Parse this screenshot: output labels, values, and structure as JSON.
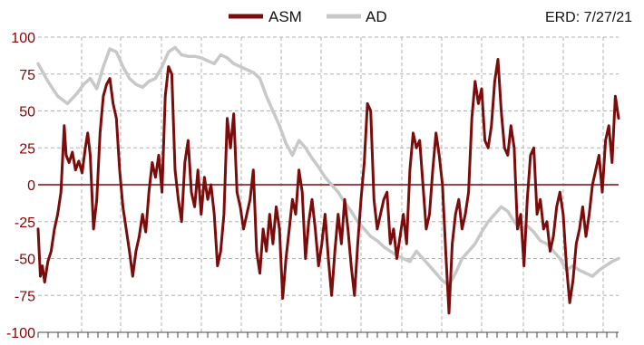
{
  "chart_data": {
    "type": "line",
    "title": "",
    "xlabel": "",
    "ylabel": "",
    "ylim": [
      -100,
      100
    ],
    "yticks": [
      100,
      75,
      50,
      25,
      0,
      -25,
      -50,
      -75,
      -100
    ],
    "grid": true,
    "legend_position": "top",
    "annotation": "ERD: 7/27/21",
    "colors": {
      "ASM": "#7b0c0c",
      "AD": "#c8c8c8",
      "zero_line": "#7b0c0c",
      "grid": "#b0b0b0",
      "tick_labels": "#8b0000"
    },
    "series": [
      {
        "name": "ASM",
        "points": [
          [
            0,
            -30
          ],
          [
            0.7,
            -62
          ],
          [
            1.3,
            -55
          ],
          [
            2,
            -66
          ],
          [
            3,
            -52
          ],
          [
            4,
            -45
          ],
          [
            5,
            -30
          ],
          [
            6,
            -20
          ],
          [
            7,
            -5
          ],
          [
            8,
            40
          ],
          [
            8.6,
            20
          ],
          [
            9.5,
            15
          ],
          [
            10.5,
            22
          ],
          [
            11.5,
            10
          ],
          [
            12.5,
            16
          ],
          [
            13.5,
            8
          ],
          [
            14.5,
            25
          ],
          [
            15.2,
            35
          ],
          [
            16,
            20
          ],
          [
            17,
            -30
          ],
          [
            18,
            -10
          ],
          [
            19,
            35
          ],
          [
            20,
            60
          ],
          [
            21,
            68
          ],
          [
            22,
            72
          ],
          [
            23,
            55
          ],
          [
            24,
            45
          ],
          [
            25,
            10
          ],
          [
            26,
            -15
          ],
          [
            27,
            -30
          ],
          [
            28,
            -45
          ],
          [
            29,
            -62
          ],
          [
            30,
            -45
          ],
          [
            31,
            -35
          ],
          [
            32,
            -20
          ],
          [
            33,
            -32
          ],
          [
            34,
            -5
          ],
          [
            35,
            15
          ],
          [
            36,
            5
          ],
          [
            37,
            20
          ],
          [
            38,
            -5
          ],
          [
            39,
            60
          ],
          [
            40,
            80
          ],
          [
            41,
            75
          ],
          [
            42,
            10
          ],
          [
            43,
            -10
          ],
          [
            44,
            -25
          ],
          [
            45,
            15
          ],
          [
            46,
            30
          ],
          [
            47,
            -5
          ],
          [
            48,
            -15
          ],
          [
            49,
            10
          ],
          [
            50,
            -20
          ],
          [
            51,
            5
          ],
          [
            52,
            -10
          ],
          [
            53,
            0
          ],
          [
            54,
            -20
          ],
          [
            55,
            -55
          ],
          [
            56,
            -45
          ],
          [
            57,
            -20
          ],
          [
            58,
            45
          ],
          [
            59,
            25
          ],
          [
            60,
            48
          ],
          [
            61,
            -5
          ],
          [
            62,
            -15
          ],
          [
            63,
            -30
          ],
          [
            64,
            -20
          ],
          [
            65,
            -10
          ],
          [
            66,
            10
          ],
          [
            67,
            -45
          ],
          [
            68,
            -60
          ],
          [
            69,
            -30
          ],
          [
            70,
            -45
          ],
          [
            71,
            -20
          ],
          [
            72,
            -40
          ],
          [
            73,
            -15
          ],
          [
            74,
            -30
          ],
          [
            75,
            -77
          ],
          [
            76,
            -50
          ],
          [
            77,
            -30
          ],
          [
            78,
            -10
          ],
          [
            79,
            -20
          ],
          [
            80,
            10
          ],
          [
            81,
            -5
          ],
          [
            82,
            -50
          ],
          [
            83,
            -25
          ],
          [
            84,
            -10
          ],
          [
            85,
            -30
          ],
          [
            86,
            -55
          ],
          [
            87,
            -40
          ],
          [
            88,
            -20
          ],
          [
            89,
            -50
          ],
          [
            90,
            -75
          ],
          [
            91,
            -45
          ],
          [
            92,
            -20
          ],
          [
            93,
            -40
          ],
          [
            94,
            -10
          ],
          [
            95,
            -30
          ],
          [
            96,
            -55
          ],
          [
            97,
            -75
          ],
          [
            98,
            -40
          ],
          [
            99,
            -10
          ],
          [
            100,
            15
          ],
          [
            101,
            55
          ],
          [
            102,
            50
          ],
          [
            103,
            -10
          ],
          [
            104,
            -30
          ],
          [
            105,
            -20
          ],
          [
            106,
            -10
          ],
          [
            107,
            -5
          ],
          [
            108,
            -40
          ],
          [
            109,
            -30
          ],
          [
            110,
            -50
          ],
          [
            111,
            -35
          ],
          [
            112,
            -20
          ],
          [
            113,
            -40
          ],
          [
            114,
            10
          ],
          [
            115,
            35
          ],
          [
            116,
            25
          ],
          [
            117,
            30
          ],
          [
            118,
            0
          ],
          [
            119,
            -30
          ],
          [
            120,
            -20
          ],
          [
            121,
            10
          ],
          [
            122,
            35
          ],
          [
            123,
            20
          ],
          [
            124,
            0
          ],
          [
            125,
            -45
          ],
          [
            126,
            -87
          ],
          [
            127,
            -40
          ],
          [
            128,
            -20
          ],
          [
            129,
            -10
          ],
          [
            130,
            -30
          ],
          [
            131,
            -20
          ],
          [
            132,
            -5
          ],
          [
            133,
            45
          ],
          [
            134,
            70
          ],
          [
            135,
            55
          ],
          [
            136,
            65
          ],
          [
            137,
            30
          ],
          [
            138,
            25
          ],
          [
            139,
            40
          ],
          [
            140,
            70
          ],
          [
            141,
            85
          ],
          [
            142,
            50
          ],
          [
            143,
            25
          ],
          [
            144,
            20
          ],
          [
            145,
            40
          ],
          [
            146,
            25
          ],
          [
            147,
            -30
          ],
          [
            148,
            -20
          ],
          [
            149,
            -55
          ],
          [
            150,
            -10
          ],
          [
            151,
            20
          ],
          [
            152,
            25
          ],
          [
            153,
            -20
          ],
          [
            154,
            -10
          ],
          [
            155,
            -30
          ],
          [
            156,
            -25
          ],
          [
            157,
            -45
          ],
          [
            158,
            -35
          ],
          [
            159,
            -15
          ],
          [
            160,
            -5
          ],
          [
            161,
            -20
          ],
          [
            162,
            -55
          ],
          [
            163,
            -80
          ],
          [
            164,
            -65
          ],
          [
            165,
            -40
          ],
          [
            166,
            -30
          ],
          [
            167,
            -15
          ],
          [
            168,
            -35
          ],
          [
            169,
            -20
          ],
          [
            170,
            0
          ],
          [
            171,
            10
          ],
          [
            172,
            20
          ],
          [
            173,
            -5
          ],
          [
            174,
            30
          ],
          [
            175,
            40
          ],
          [
            176,
            15
          ],
          [
            177,
            60
          ],
          [
            178,
            45
          ]
        ]
      },
      {
        "name": "AD",
        "points": [
          [
            0,
            82
          ],
          [
            3,
            70
          ],
          [
            6,
            60
          ],
          [
            9,
            55
          ],
          [
            12,
            62
          ],
          [
            14,
            68
          ],
          [
            16,
            72
          ],
          [
            18,
            65
          ],
          [
            20,
            80
          ],
          [
            22,
            92
          ],
          [
            24,
            90
          ],
          [
            26,
            80
          ],
          [
            28,
            72
          ],
          [
            30,
            68
          ],
          [
            32,
            66
          ],
          [
            34,
            70
          ],
          [
            36,
            72
          ],
          [
            38,
            80
          ],
          [
            40,
            90
          ],
          [
            42,
            93
          ],
          [
            44,
            88
          ],
          [
            46,
            87
          ],
          [
            48,
            87
          ],
          [
            50,
            86
          ],
          [
            52,
            84
          ],
          [
            54,
            82
          ],
          [
            56,
            88
          ],
          [
            58,
            86
          ],
          [
            60,
            82
          ],
          [
            62,
            80
          ],
          [
            64,
            78
          ],
          [
            66,
            76
          ],
          [
            68,
            72
          ],
          [
            70,
            60
          ],
          [
            72,
            50
          ],
          [
            74,
            40
          ],
          [
            76,
            28
          ],
          [
            78,
            20
          ],
          [
            80,
            30
          ],
          [
            82,
            25
          ],
          [
            84,
            18
          ],
          [
            86,
            12
          ],
          [
            88,
            5
          ],
          [
            90,
            0
          ],
          [
            92,
            -5
          ],
          [
            94,
            -12
          ],
          [
            96,
            -18
          ],
          [
            98,
            -25
          ],
          [
            100,
            -30
          ],
          [
            102,
            -35
          ],
          [
            104,
            -38
          ],
          [
            106,
            -42
          ],
          [
            108,
            -45
          ],
          [
            110,
            -48
          ],
          [
            112,
            -50
          ],
          [
            114,
            -52
          ],
          [
            116,
            -45
          ],
          [
            118,
            -50
          ],
          [
            120,
            -55
          ],
          [
            122,
            -60
          ],
          [
            124,
            -65
          ],
          [
            126,
            -68
          ],
          [
            128,
            -60
          ],
          [
            130,
            -50
          ],
          [
            132,
            -45
          ],
          [
            134,
            -40
          ],
          [
            136,
            -32
          ],
          [
            138,
            -25
          ],
          [
            140,
            -20
          ],
          [
            142,
            -15
          ],
          [
            144,
            -18
          ],
          [
            146,
            -25
          ],
          [
            148,
            -30
          ],
          [
            150,
            -28
          ],
          [
            152,
            -32
          ],
          [
            154,
            -38
          ],
          [
            156,
            -40
          ],
          [
            158,
            -45
          ],
          [
            160,
            -50
          ],
          [
            162,
            -58
          ],
          [
            164,
            -55
          ],
          [
            166,
            -58
          ],
          [
            168,
            -60
          ],
          [
            170,
            -62
          ],
          [
            172,
            -58
          ],
          [
            174,
            -55
          ],
          [
            176,
            -52
          ],
          [
            178,
            -50
          ]
        ]
      }
    ]
  },
  "legend": {
    "items": [
      {
        "name": "ASM",
        "color": "#7b0c0c"
      },
      {
        "name": "AD",
        "color": "#c8c8c8"
      }
    ]
  },
  "annotation": {
    "erd": "ERD: 7/27/21"
  }
}
